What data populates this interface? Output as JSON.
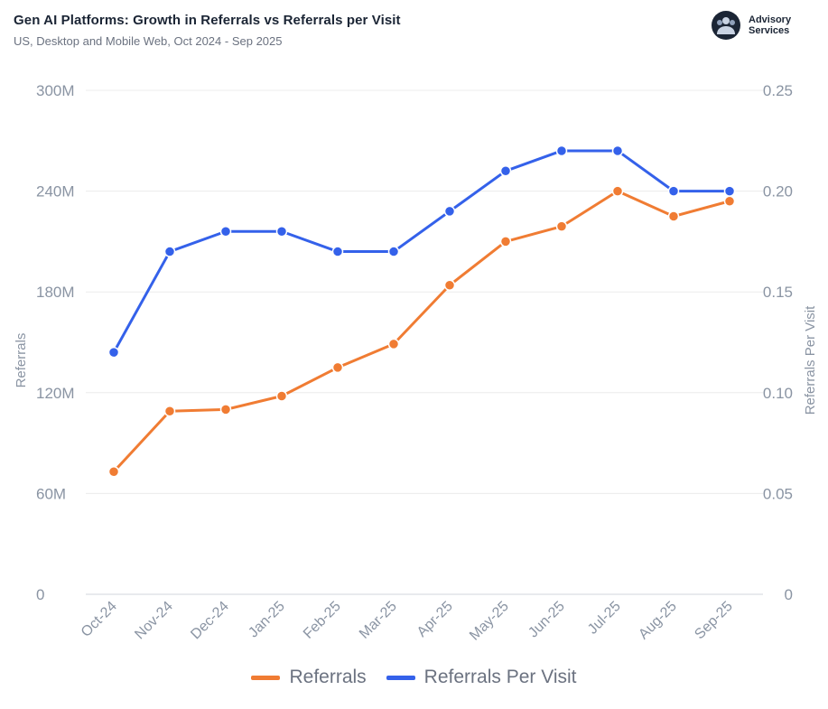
{
  "header": {
    "title": "Gen AI Platforms: Growth in Referrals vs Referrals per Visit",
    "subtitle": "US, Desktop and Mobile Web, Oct 2024 - Sep 2025"
  },
  "brand": {
    "line1": "Advisory",
    "line2": "Services",
    "icon": "people-group-icon"
  },
  "colors": {
    "referrals": "#f07c33",
    "referrals_per_visit": "#3461ea",
    "grid": "#ececec",
    "axis_text": "#8a94a3"
  },
  "chart_data": {
    "type": "line",
    "title": "Gen AI Platforms: Growth in Referrals vs Referrals per Visit",
    "subtitle": "US, Desktop and Mobile Web, Oct 2024 - Sep 2025",
    "categories": [
      "Oct-24",
      "Nov-24",
      "Dec-24",
      "Jan-25",
      "Feb-25",
      "Mar-25",
      "Apr-25",
      "May-25",
      "Jun-25",
      "Jul-25",
      "Aug-25",
      "Sep-25"
    ],
    "y_left": {
      "label": "Referrals",
      "ticks": [
        "0",
        "60M",
        "120M",
        "180M",
        "240M",
        "300M"
      ],
      "range": [
        0,
        300000000
      ]
    },
    "y_right": {
      "label": "Referrals Per Visit",
      "ticks": [
        "0",
        "0.05",
        "0.10",
        "0.15",
        "0.20",
        "0.25"
      ],
      "range": [
        0,
        0.25
      ]
    },
    "series": [
      {
        "name": "Referrals",
        "axis": "left",
        "color": "#f07c33",
        "values": [
          73000000,
          109000000,
          110000000,
          118000000,
          135000000,
          149000000,
          184000000,
          210000000,
          219000000,
          240000000,
          225000000,
          234000000
        ]
      },
      {
        "name": "Referrals Per Visit",
        "axis": "right",
        "color": "#3461ea",
        "values": [
          0.12,
          0.17,
          0.18,
          0.18,
          0.17,
          0.17,
          0.19,
          0.21,
          0.22,
          0.22,
          0.2,
          0.2
        ]
      }
    ],
    "grid": true,
    "legend": "bottom-center"
  }
}
